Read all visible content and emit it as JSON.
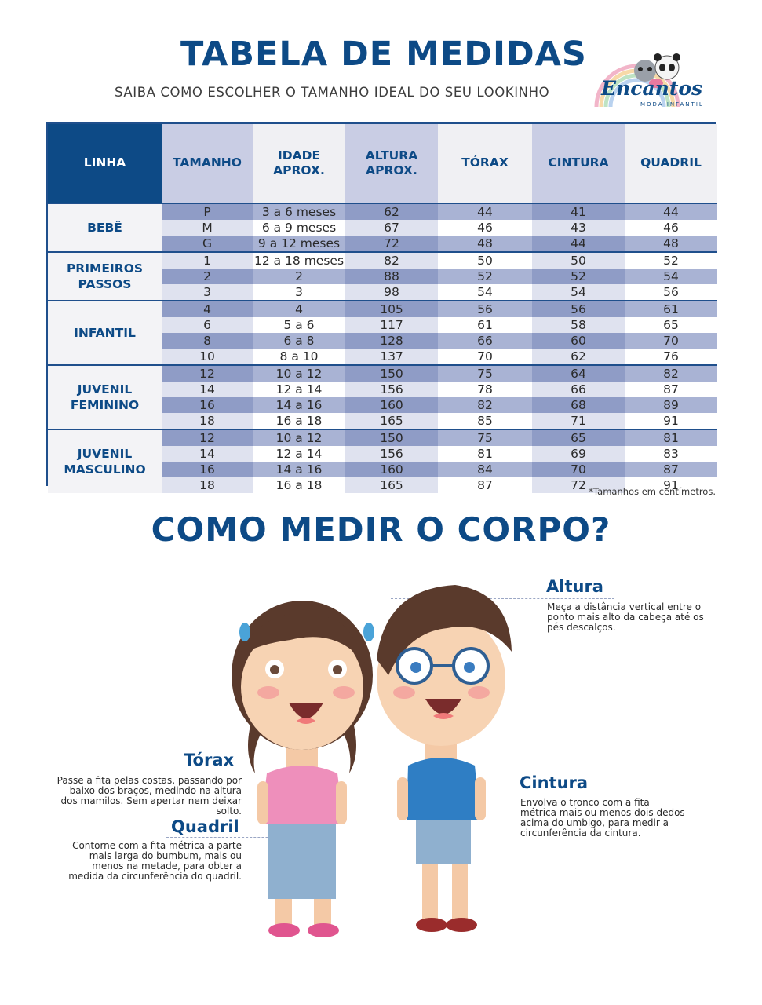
{
  "header": {
    "title": "TABELA DE MEDIDAS",
    "subtitle": "SAIBA COMO ESCOLHER O TAMANHO IDEAL DO SEU LOOKINHO",
    "logo_text": "Encantos",
    "logo_sub": "MODA INFANTIL"
  },
  "table": {
    "headers": [
      "LINHA",
      "TAMANHO",
      "IDADE APROX.",
      "ALTURA APROX.",
      "TÓRAX",
      "CINTURA",
      "QUADRIL"
    ],
    "groups": [
      {
        "label": "BEBÊ",
        "rows": [
          [
            "P",
            "3 a 6 meses",
            "62",
            "44",
            "41",
            "44"
          ],
          [
            "M",
            "6 a 9 meses",
            "67",
            "46",
            "43",
            "46"
          ],
          [
            "G",
            "9 a 12 meses",
            "72",
            "48",
            "44",
            "48"
          ]
        ]
      },
      {
        "label": "PRIMEIROS PASSOS",
        "rows": [
          [
            "1",
            "12 a 18 meses",
            "82",
            "50",
            "50",
            "52"
          ],
          [
            "2",
            "2",
            "88",
            "52",
            "52",
            "54"
          ],
          [
            "3",
            "3",
            "98",
            "54",
            "54",
            "56"
          ]
        ]
      },
      {
        "label": "INFANTIL",
        "rows": [
          [
            "4",
            "4",
            "105",
            "56",
            "56",
            "61"
          ],
          [
            "6",
            "5 a 6",
            "117",
            "61",
            "58",
            "65"
          ],
          [
            "8",
            "6 a 8",
            "128",
            "66",
            "60",
            "70"
          ],
          [
            "10",
            "8 a 10",
            "137",
            "70",
            "62",
            "76"
          ]
        ]
      },
      {
        "label": "JUVENIL FEMININO",
        "rows": [
          [
            "12",
            "10 a 12",
            "150",
            "75",
            "64",
            "82"
          ],
          [
            "14",
            "12 a 14",
            "156",
            "78",
            "66",
            "87"
          ],
          [
            "16",
            "14 a 16",
            "160",
            "82",
            "68",
            "89"
          ],
          [
            "18",
            "16 a 18",
            "165",
            "85",
            "71",
            "91"
          ]
        ]
      },
      {
        "label": "JUVENIL MASCULINO",
        "rows": [
          [
            "12",
            "10 a 12",
            "150",
            "75",
            "65",
            "81"
          ],
          [
            "14",
            "12 a 14",
            "156",
            "81",
            "69",
            "83"
          ],
          [
            "16",
            "14 a 16",
            "160",
            "84",
            "70",
            "87"
          ],
          [
            "18",
            "16 a 18",
            "165",
            "87",
            "72",
            "91"
          ]
        ]
      }
    ],
    "footnote": "*Tamanhos em centímetros."
  },
  "how_to": {
    "title": "COMO MEDIR O CORPO?",
    "altura": {
      "label": "Altura",
      "text": "Meça a distância vertical entre o ponto mais alto da cabeça até os pés descalços."
    },
    "torax": {
      "label": "Tórax",
      "text": "Passe a fita pelas costas, passando por baixo dos braços, medindo na altura dos mamilos. Sem apertar nem deixar solto."
    },
    "quadril": {
      "label": "Quadril",
      "text": "Contorne com a fita métrica a parte mais larga do bumbum, mais ou menos na metade, para obter a medida da circunferência do quadril."
    },
    "cintura": {
      "label": "Cintura",
      "text": "Envolva o tronco com a fita métrica mais ou menos dois dedos acima do umbigo, para medir a circunferência da cintura."
    }
  }
}
